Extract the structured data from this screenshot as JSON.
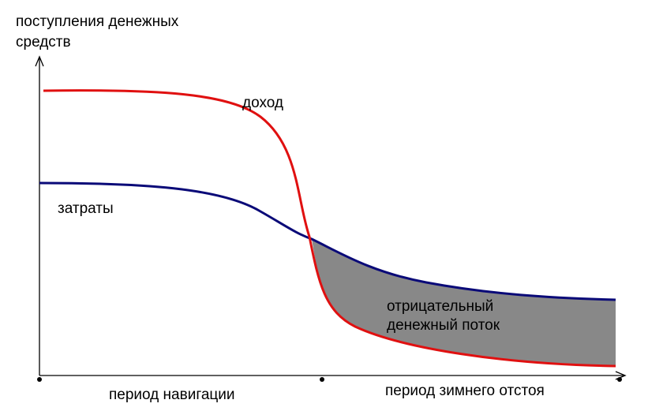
{
  "chart_data": {
    "type": "line",
    "title": "",
    "ylabel": [
      "поступления денежных",
      "средств"
    ],
    "xlabel": "",
    "grid": false,
    "legend": "none",
    "x_ticks": [
      {
        "key": "start",
        "label": ""
      },
      {
        "key": "mid",
        "label": ""
      },
      {
        "key": "end",
        "label": ""
      }
    ],
    "periods": [
      "период навигации",
      "период зимнего отстоя"
    ],
    "series": [
      {
        "key": "income",
        "name": "доход",
        "color": "#e01010",
        "shape": "high plateau, sharp drop in the middle, low plateau"
      },
      {
        "key": "costs",
        "name": "затраты",
        "color": "#0a0a78",
        "shape": "medium plateau, gradual decline, medium-low plateau"
      }
    ],
    "region": {
      "label": [
        "отрицательный",
        "денежный поток"
      ],
      "fill_color": "#888888",
      "description": "area between costs (above) and income (below) after the crossing"
    }
  }
}
